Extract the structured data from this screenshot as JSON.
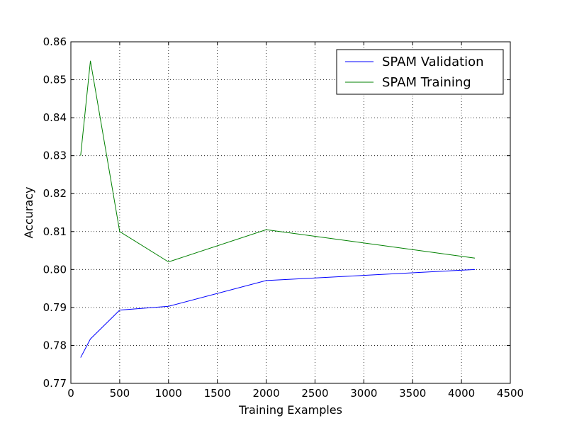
{
  "chart_data": {
    "type": "line",
    "title": "",
    "xlabel": "Training Examples",
    "ylabel": "Accuracy",
    "xlim": [
      0,
      4500
    ],
    "ylim": [
      0.77,
      0.86
    ],
    "x_ticks": [
      0,
      500,
      1000,
      1500,
      2000,
      2500,
      3000,
      3500,
      4000,
      4500
    ],
    "x_tick_labels": [
      "0",
      "500",
      "1000",
      "1500",
      "2000",
      "2500",
      "3000",
      "3500",
      "4000",
      "4500"
    ],
    "y_ticks": [
      0.77,
      0.78,
      0.79,
      0.8,
      0.81,
      0.82,
      0.83,
      0.84,
      0.85,
      0.86
    ],
    "y_tick_labels": [
      "0.77",
      "0.78",
      "0.79",
      "0.80",
      "0.81",
      "0.82",
      "0.83",
      "0.84",
      "0.85",
      "0.86"
    ],
    "grid": true,
    "legend_position": "top-right",
    "series": [
      {
        "name": "SPAM Validation",
        "color": "#0000ff",
        "x": [
          100,
          200,
          500,
          1000,
          2000,
          4137
        ],
        "y": [
          0.7768,
          0.7817,
          0.7893,
          0.7903,
          0.7971,
          0.8
        ]
      },
      {
        "name": "SPAM Training",
        "color": "#008000",
        "x": [
          100,
          200,
          500,
          1000,
          2000,
          4137
        ],
        "y": [
          0.83,
          0.855,
          0.81,
          0.802,
          0.8105,
          0.803
        ]
      }
    ]
  }
}
